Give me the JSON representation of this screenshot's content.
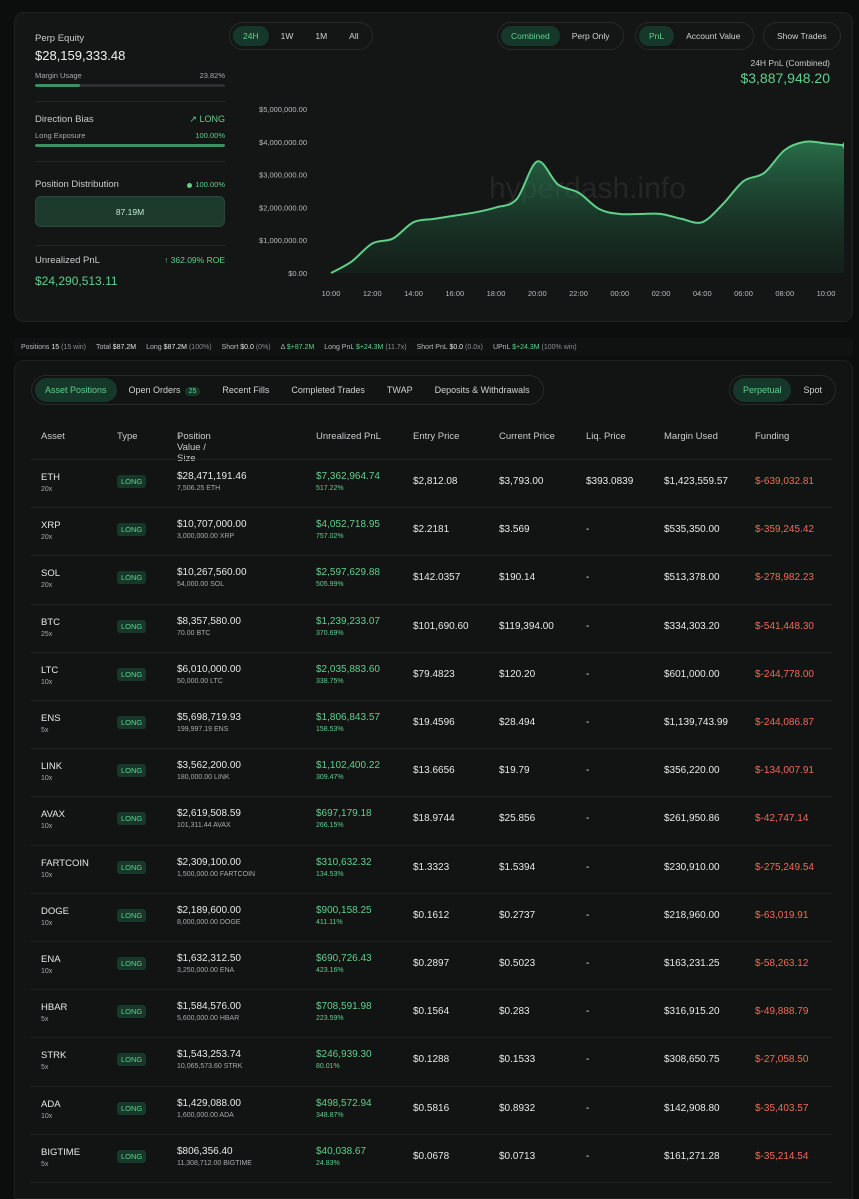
{
  "summary": {
    "perp_equity_label": "Perp Equity",
    "perp_equity_value": "$28,159,333.48",
    "margin_usage_label": "Margin Usage",
    "margin_usage_value": "23.82%",
    "margin_usage_fraction": 0.2382,
    "direction_bias_label": "Direction Bias",
    "direction_bias_value": "LONG",
    "long_exposure_label": "Long Exposure",
    "long_exposure_value": "100.00%",
    "long_exposure_fraction": 1.0,
    "position_distribution_label": "Position Distribution",
    "position_distribution_pct": "100.00%",
    "position_distribution_amount": "87.19M",
    "unrealized_pnl_label": "Unrealized PnL",
    "unrealized_pnl_roe": "362.09% ROE",
    "unrealized_pnl_value": "$24,290,513.11"
  },
  "chart_controls": {
    "ranges": [
      "24H",
      "1W",
      "1M",
      "All"
    ],
    "active_range": "24H",
    "modes": [
      "Combined",
      "Perp Only"
    ],
    "active_mode": "Combined",
    "metrics": [
      "PnL",
      "Account Value"
    ],
    "active_metric": "PnL",
    "show_trades_label": "Show Trades"
  },
  "chart_header": {
    "label": "24H PnL (Combined)",
    "value": "$3,887,948.20"
  },
  "watermark": "hyperdash.info",
  "chart_data": {
    "type": "area",
    "x_ticks": [
      "10:00",
      "12:00",
      "14:00",
      "16:00",
      "18:00",
      "20:00",
      "22:00",
      "00:00",
      "02:00",
      "04:00",
      "06:00",
      "08:00",
      "10:00"
    ],
    "y_ticks": [
      "$0.00",
      "$1,000,000.00",
      "$2,000,000.00",
      "$3,000,000.00",
      "$4,000,000.00",
      "$5,000,000.00"
    ],
    "ylim": [
      0,
      5000000
    ],
    "x": [
      0,
      0.5,
      1,
      1.5,
      2,
      2.5,
      3,
      3.5,
      4,
      4.5,
      5,
      5.5,
      6,
      6.5,
      7,
      7.5,
      8,
      8.5,
      9,
      9.5,
      10,
      10.5,
      11,
      11.5,
      12,
      12.5
    ],
    "values": [
      0,
      350000,
      900000,
      1050000,
      1550000,
      1650000,
      1750000,
      1850000,
      2000000,
      2250000,
      3400000,
      2700000,
      2450000,
      1950000,
      1800000,
      1800000,
      1800000,
      1650000,
      1550000,
      2100000,
      2800000,
      3050000,
      3750000,
      4000000,
      3950000,
      3887948
    ],
    "grid": false,
    "legend": "none"
  },
  "stats_bar": [
    {
      "label": "Positions",
      "value": "15",
      "extra": "(15 win)"
    },
    {
      "label": "Total",
      "value": "$87.2M",
      "extra": ""
    },
    {
      "label": "Long",
      "value": "$87.2M",
      "extra": "(100%)"
    },
    {
      "label": "Short",
      "value": "$0.0",
      "extra": "(0%)"
    },
    {
      "label": "Δ",
      "value": "$+87.2M",
      "extra": ""
    },
    {
      "label": "Long PnL",
      "value": "$+24.3M",
      "extra": "(11.7x)"
    },
    {
      "label": "Short PnL",
      "value": "$0.0",
      "extra": "(0.0x)"
    },
    {
      "label": "UPnL",
      "value": "$+24.3M",
      "extra": "(100% win)"
    }
  ],
  "tabs": [
    {
      "label": "Asset Positions",
      "badge": ""
    },
    {
      "label": "Open Orders",
      "badge": "25"
    },
    {
      "label": "Recent Fills",
      "badge": ""
    },
    {
      "label": "Completed Trades",
      "badge": ""
    },
    {
      "label": "TWAP",
      "badge": ""
    },
    {
      "label": "Deposits & Withdrawals",
      "badge": ""
    }
  ],
  "market_toggle": [
    "Perpetual",
    "Spot"
  ],
  "table_headers": {
    "asset": "Asset",
    "type": "Type",
    "position_value": "Position Value / Size",
    "unrealized_pnl": "Unrealized PnL",
    "entry_price": "Entry Price",
    "current_price": "Current Price",
    "liq_price": "Liq. Price",
    "margin_used": "Margin Used",
    "funding": "Funding"
  },
  "rows": [
    {
      "asset": "ETH",
      "lev": "20x",
      "type": "LONG",
      "value": "$28,471,191.46",
      "size": "7,506.25 ETH",
      "pnl": "$7,362,964.74",
      "pnl_pct": "517.22%",
      "entry": "$2,812.08",
      "current": "$3,793.00",
      "liq": "$393.0839",
      "margin": "$1,423,559.57",
      "funding": "$-639,032.81"
    },
    {
      "asset": "XRP",
      "lev": "20x",
      "type": "LONG",
      "value": "$10,707,000.00",
      "size": "3,000,000.00 XRP",
      "pnl": "$4,052,718.95",
      "pnl_pct": "757.02%",
      "entry": "$2.2181",
      "current": "$3.569",
      "liq": "-",
      "margin": "$535,350.00",
      "funding": "$-359,245.42"
    },
    {
      "asset": "SOL",
      "lev": "20x",
      "type": "LONG",
      "value": "$10,267,560.00",
      "size": "54,000.00 SOL",
      "pnl": "$2,597,629.88",
      "pnl_pct": "505.99%",
      "entry": "$142.0357",
      "current": "$190.14",
      "liq": "-",
      "margin": "$513,378.00",
      "funding": "$-278,982.23"
    },
    {
      "asset": "BTC",
      "lev": "25x",
      "type": "LONG",
      "value": "$8,357,580.00",
      "size": "70.00 BTC",
      "pnl": "$1,239,233.07",
      "pnl_pct": "370.69%",
      "entry": "$101,690.60",
      "current": "$119,394.00",
      "liq": "-",
      "margin": "$334,303.20",
      "funding": "$-541,448.30"
    },
    {
      "asset": "LTC",
      "lev": "10x",
      "type": "LONG",
      "value": "$6,010,000.00",
      "size": "50,000.00 LTC",
      "pnl": "$2,035,883.60",
      "pnl_pct": "338.75%",
      "entry": "$79.4823",
      "current": "$120.20",
      "liq": "-",
      "margin": "$601,000.00",
      "funding": "$-244,778.00"
    },
    {
      "asset": "ENS",
      "lev": "5x",
      "type": "LONG",
      "value": "$5,698,719.93",
      "size": "199,997.19 ENS",
      "pnl": "$1,806,843.57",
      "pnl_pct": "158.53%",
      "entry": "$19.4596",
      "current": "$28.494",
      "liq": "-",
      "margin": "$1,139,743.99",
      "funding": "$-244,086.87"
    },
    {
      "asset": "LINK",
      "lev": "10x",
      "type": "LONG",
      "value": "$3,562,200.00",
      "size": "180,000.00 LINK",
      "pnl": "$1,102,400.22",
      "pnl_pct": "309.47%",
      "entry": "$13.6656",
      "current": "$19.79",
      "liq": "-",
      "margin": "$356,220.00",
      "funding": "$-134,007.91"
    },
    {
      "asset": "AVAX",
      "lev": "10x",
      "type": "LONG",
      "value": "$2,619,508.59",
      "size": "101,311.44 AVAX",
      "pnl": "$697,179.18",
      "pnl_pct": "266.15%",
      "entry": "$18.9744",
      "current": "$25.856",
      "liq": "-",
      "margin": "$261,950.86",
      "funding": "$-42,747.14"
    },
    {
      "asset": "FARTCOIN",
      "lev": "10x",
      "type": "LONG",
      "value": "$2,309,100.00",
      "size": "1,500,000.00 FARTCOIN",
      "pnl": "$310,632.32",
      "pnl_pct": "134.53%",
      "entry": "$1.3323",
      "current": "$1.5394",
      "liq": "-",
      "margin": "$230,910.00",
      "funding": "$-275,249.54"
    },
    {
      "asset": "DOGE",
      "lev": "10x",
      "type": "LONG",
      "value": "$2,189,600.00",
      "size": "8,000,000.00 DOGE",
      "pnl": "$900,158.25",
      "pnl_pct": "411.11%",
      "entry": "$0.1612",
      "current": "$0.2737",
      "liq": "-",
      "margin": "$218,960.00",
      "funding": "$-63,019.91"
    },
    {
      "asset": "ENA",
      "lev": "10x",
      "type": "LONG",
      "value": "$1,632,312.50",
      "size": "3,250,000.00 ENA",
      "pnl": "$690,726.43",
      "pnl_pct": "423.16%",
      "entry": "$0.2897",
      "current": "$0.5023",
      "liq": "-",
      "margin": "$163,231.25",
      "funding": "$-58,263.12"
    },
    {
      "asset": "HBAR",
      "lev": "5x",
      "type": "LONG",
      "value": "$1,584,576.00",
      "size": "5,600,000.00 HBAR",
      "pnl": "$708,591.98",
      "pnl_pct": "223.59%",
      "entry": "$0.1564",
      "current": "$0.283",
      "liq": "-",
      "margin": "$316,915.20",
      "funding": "$-49,888.79"
    },
    {
      "asset": "STRK",
      "lev": "5x",
      "type": "LONG",
      "value": "$1,543,253.74",
      "size": "10,065,573.60 STRK",
      "pnl": "$246,939.30",
      "pnl_pct": "80.01%",
      "entry": "$0.1288",
      "current": "$0.1533",
      "liq": "-",
      "margin": "$308,650.75",
      "funding": "$-27,058.50"
    },
    {
      "asset": "ADA",
      "lev": "10x",
      "type": "LONG",
      "value": "$1,429,088.00",
      "size": "1,600,000.00 ADA",
      "pnl": "$498,572.94",
      "pnl_pct": "348.87%",
      "entry": "$0.5816",
      "current": "$0.8932",
      "liq": "-",
      "margin": "$142,908.80",
      "funding": "$-35,403.57"
    },
    {
      "asset": "BIGTIME",
      "lev": "5x",
      "type": "LONG",
      "value": "$806,356.40",
      "size": "11,308,712.00 BIGTIME",
      "pnl": "$40,038.67",
      "pnl_pct": "24.83%",
      "entry": "$0.0678",
      "current": "$0.0713",
      "liq": "-",
      "margin": "$161,271.28",
      "funding": "$-35,214.54"
    }
  ],
  "colors": {
    "accent_green": "#5fd08a",
    "negative_red": "#f06a5a",
    "background": "#0c0d0d"
  }
}
